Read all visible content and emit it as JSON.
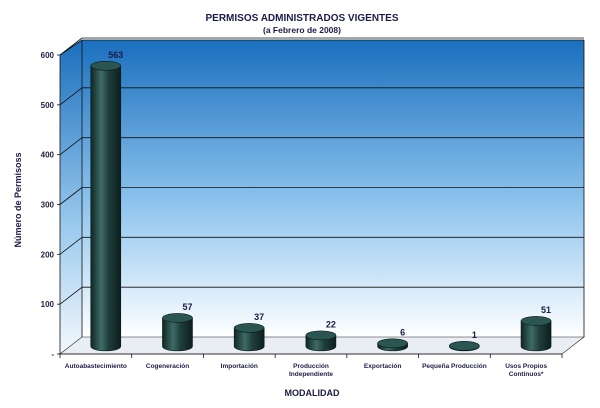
{
  "chart_data": {
    "type": "bar",
    "title": "PERMISOS ADMINISTRADOS VIGENTES",
    "subtitle": "(a Febrero de 2008)",
    "xlabel": "MODALIDAD",
    "ylabel": "Número de Permisoss",
    "ylim": [
      0,
      600
    ],
    "yticks": [
      "-",
      "100",
      "200",
      "300",
      "400",
      "500",
      "600"
    ],
    "categories": [
      [
        "Autoabastecimiento"
      ],
      [
        "Cogeneración"
      ],
      [
        "Importación"
      ],
      [
        "Producción",
        "Independiente"
      ],
      [
        "Exportación"
      ],
      [
        "Pequeña Producción"
      ],
      [
        "Usos Propios",
        "Continuos*"
      ]
    ],
    "values": [
      563,
      57,
      37,
      22,
      6,
      1,
      51
    ],
    "value_labels": [
      "563",
      "57",
      "37",
      "22",
      "6",
      "1",
      "51"
    ],
    "grid": true,
    "bar_style": "3d-cylinder",
    "colors": {
      "bar": "#1f3f3c",
      "bar_highlight": "#4e7a74",
      "wall_top": "#1e73be",
      "wall_bottom": "#ffffff",
      "floor": "#e8edf4",
      "grid": "#111111"
    }
  }
}
